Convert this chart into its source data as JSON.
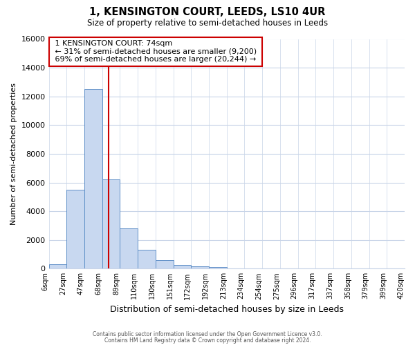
{
  "title": "1, KENSINGTON COURT, LEEDS, LS10 4UR",
  "subtitle": "Size of property relative to semi-detached houses in Leeds",
  "xlabel": "Distribution of semi-detached houses by size in Leeds",
  "ylabel": "Number of semi-detached properties",
  "bin_labels": [
    "6sqm",
    "27sqm",
    "47sqm",
    "68sqm",
    "89sqm",
    "110sqm",
    "130sqm",
    "151sqm",
    "172sqm",
    "192sqm",
    "213sqm",
    "234sqm",
    "254sqm",
    "275sqm",
    "296sqm",
    "317sqm",
    "337sqm",
    "358sqm",
    "379sqm",
    "399sqm",
    "420sqm"
  ],
  "bar_values": [
    300,
    5500,
    12500,
    6200,
    2800,
    1300,
    600,
    250,
    150,
    100,
    0,
    0,
    0,
    0,
    0,
    0,
    0,
    0,
    0,
    0
  ],
  "bar_color": "#c8d8f0",
  "bar_edge_color": "#6090c8",
  "property_line_x": 3.35,
  "ylim": [
    0,
    16000
  ],
  "yticks": [
    0,
    2000,
    4000,
    6000,
    8000,
    10000,
    12000,
    14000,
    16000
  ],
  "annotation_title": "1 KENSINGTON COURT: 74sqm",
  "annotation_line1": "← 31% of semi-detached houses are smaller (9,200)",
  "annotation_line2": "69% of semi-detached houses are larger (20,244) →",
  "footer1": "Contains HM Land Registry data © Crown copyright and database right 2024.",
  "footer2": "Contains public sector information licensed under the Open Government Licence v3.0.",
  "bg_color": "#ffffff",
  "grid_color": "#c8d4e8",
  "annotation_box_color": "#ffffff",
  "annotation_box_edge": "#cc0000",
  "property_line_color": "#cc0000"
}
